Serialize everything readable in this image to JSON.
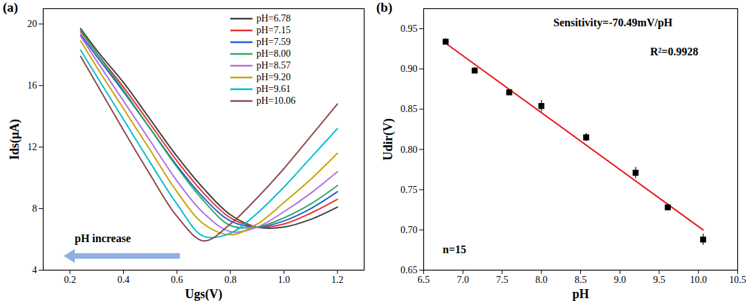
{
  "chart_data": [
    {
      "type": "line",
      "panel_label": "(a)",
      "x_label": "Ugs(V)",
      "y_label": "Ids(μA)",
      "x": [
        0.24,
        0.3,
        0.4,
        0.5,
        0.6,
        0.7,
        0.8,
        0.9,
        1.0,
        1.1,
        1.2
      ],
      "series": [
        {
          "name": "pH=6.78",
          "color": "#404040",
          "values": [
            19.7,
            18.3,
            16.2,
            13.8,
            11.4,
            9.3,
            7.6,
            6.8,
            6.8,
            7.3,
            8.1
          ]
        },
        {
          "name": "pH=7.15",
          "color": "#e8312f",
          "values": [
            19.5,
            18.1,
            15.9,
            13.5,
            11.1,
            9.0,
            7.4,
            6.8,
            7.0,
            7.7,
            8.6
          ]
        },
        {
          "name": "pH=7.59",
          "color": "#1f5fd6",
          "values": [
            19.3,
            17.9,
            15.6,
            13.2,
            10.8,
            8.7,
            7.2,
            6.8,
            7.2,
            8.0,
            9.1
          ]
        },
        {
          "name": "pH=8.00",
          "color": "#2ea860",
          "values": [
            19.6,
            18.1,
            15.7,
            13.2,
            10.7,
            8.5,
            6.9,
            6.8,
            7.4,
            8.3,
            9.5
          ]
        },
        {
          "name": "pH=8.57",
          "color": "#b070e0",
          "values": [
            19.2,
            17.6,
            15.0,
            12.4,
            9.8,
            7.7,
            6.5,
            6.8,
            7.8,
            9.0,
            10.4
          ]
        },
        {
          "name": "pH=9.20",
          "color": "#c9a200",
          "values": [
            18.9,
            17.2,
            14.5,
            11.8,
            9.1,
            7.0,
            6.3,
            7.0,
            8.4,
            9.9,
            11.6
          ]
        },
        {
          "name": "pH=9.61",
          "color": "#00bcd4",
          "values": [
            18.3,
            16.6,
            13.8,
            11.0,
            8.3,
            6.2,
            6.4,
            7.7,
            9.4,
            11.3,
            13.2
          ]
        },
        {
          "name": "pH=10.06",
          "color": "#8b4a4a",
          "values": [
            17.9,
            16.1,
            13.1,
            10.2,
            7.5,
            5.9,
            7.0,
            8.7,
            10.6,
            12.7,
            14.8
          ]
        }
      ],
      "xlim": [
        0.1,
        1.3
      ],
      "xticks": [
        0.2,
        0.4,
        0.6,
        0.8,
        {
          "value": 1.0,
          "label": "1.0"
        },
        1.2
      ],
      "ylim": [
        4,
        21
      ],
      "yticks": [
        4,
        8,
        12,
        16,
        20
      ],
      "legend": "top-right",
      "annotations": [
        "pH increase"
      ]
    },
    {
      "type": "scatter",
      "panel_label": "(b)",
      "x_label": "pH",
      "y_label": "Udir(V)",
      "x": [
        6.78,
        7.15,
        7.59,
        8.0,
        8.57,
        9.2,
        9.61,
        10.06
      ],
      "values": [
        0.934,
        0.898,
        0.871,
        0.854,
        0.815,
        0.771,
        0.728,
        0.688
      ],
      "errors": [
        0.004,
        0.004,
        0.003,
        0.007,
        0.005,
        0.007,
        0.004,
        0.007
      ],
      "color": "#000000",
      "marker": "square",
      "fit": {
        "x": [
          6.78,
          10.06
        ],
        "y": [
          0.932,
          0.7
        ],
        "color": "#e8141b"
      },
      "xlim": [
        6.5,
        10.5
      ],
      "xticks": [
        6.5,
        {
          "value": 7.0,
          "label": "7.0"
        },
        7.5,
        {
          "value": 8.0,
          "label": "8.0"
        },
        8.5,
        {
          "value": 9.0,
          "label": "9.0"
        },
        9.5,
        {
          "value": 10.0,
          "label": "10.0"
        },
        10.5
      ],
      "ylim": [
        0.65,
        0.975
      ],
      "yticks": [
        0.65,
        {
          "value": 0.7,
          "label": "0.70"
        },
        0.75,
        {
          "value": 0.8,
          "label": "0.80"
        },
        0.85,
        {
          "value": 0.9,
          "label": "0.90"
        },
        0.95
      ],
      "annotations": [
        "Sensitivity=-70.49mV/pH",
        "R²=0.9928",
        "n=15"
      ]
    }
  ]
}
